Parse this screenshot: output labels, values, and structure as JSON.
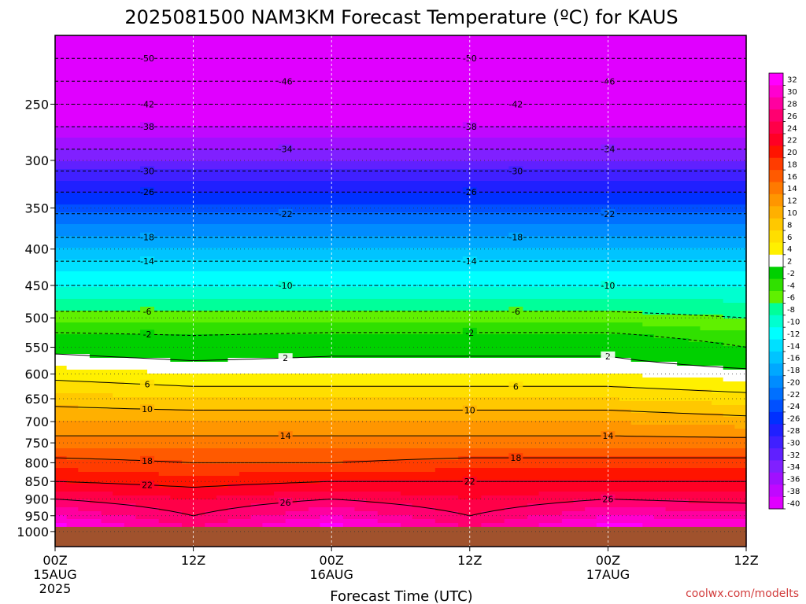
{
  "chart_data": {
    "type": "heatmap",
    "title": "2025081500 NAM3KM Forecast Temperature (ºC) for KAUS",
    "xlabel": "Forecast Time (UTC)",
    "ylabel": "",
    "credit": "coolwx.com/modelts",
    "x_range_hours": [
      0,
      60
    ],
    "y_log_pressure": true,
    "y_range_hpa": [
      200,
      1050
    ],
    "surface_pressure_hpa": 985,
    "x_ticks": [
      {
        "hour": 0,
        "label": "00Z",
        "date": "15AUG",
        "year": "2025"
      },
      {
        "hour": 12,
        "label": "12Z",
        "date": "",
        "year": ""
      },
      {
        "hour": 24,
        "label": "00Z",
        "date": "16AUG",
        "year": ""
      },
      {
        "hour": 36,
        "label": "12Z",
        "date": "",
        "year": ""
      },
      {
        "hour": 48,
        "label": "00Z",
        "date": "17AUG",
        "year": ""
      },
      {
        "hour": 60,
        "label": "12Z",
        "date": "",
        "year": ""
      }
    ],
    "y_ticks": [
      "250",
      "300",
      "350",
      "400",
      "450",
      "500",
      "550",
      "600",
      "650",
      "700",
      "750",
      "800",
      "850",
      "900",
      "950",
      "1000"
    ],
    "colorbar_levels": [
      "32",
      "30",
      "28",
      "26",
      "24",
      "22",
      "20",
      "18",
      "16",
      "14",
      "12",
      "10",
      "8",
      "6",
      "4",
      "2",
      "-2",
      "-4",
      "-6",
      "-8",
      "-10",
      "-12",
      "-14",
      "-16",
      "-18",
      "-20",
      "-22",
      "-24",
      "-26",
      "-28",
      "-30",
      "-32",
      "-34",
      "-36",
      "-38",
      "-40"
    ],
    "colorbar_colors": [
      "#ff00ff",
      "#ff00d0",
      "#ff00a0",
      "#ff0070",
      "#ff0048",
      "#ff0024",
      "#ff1400",
      "#ff3c00",
      "#ff5a00",
      "#ff7a00",
      "#ff9600",
      "#ffb000",
      "#ffc800",
      "#ffde00",
      "#fff000",
      "#ffffff",
      "#00d000",
      "#30e000",
      "#60f000",
      "#00ff9a",
      "#00ffd0",
      "#00ffff",
      "#00e0ff",
      "#00c4ff",
      "#00a8ff",
      "#008cff",
      "#0070ff",
      "#0050ff",
      "#0030ff",
      "#2020ff",
      "#4020ff",
      "#6020ff",
      "#8020ff",
      "#a010ff",
      "#c008ff",
      "#e000ff"
    ],
    "temperature_profiles": [
      {
        "hour": 0,
        "temps_c": {
          "200": -54,
          "250": -42,
          "300": -32,
          "350": -23,
          "400": -16,
          "450": -10,
          "500": -5,
          "550": 1,
          "600": 5,
          "650": 9,
          "700": 12,
          "750": 15,
          "800": 19,
          "850": 22,
          "900": 26,
          "950": 30,
          "985": 33
        }
      },
      {
        "hour": 12,
        "temps_c": {
          "200": -54,
          "250": -42,
          "300": -32,
          "350": -23,
          "400": -16,
          "450": -10,
          "500": -5,
          "550": 0,
          "600": 4,
          "650": 8,
          "700": 12,
          "750": 15,
          "800": 18,
          "850": 21,
          "900": 24,
          "950": 26,
          "985": 28
        }
      },
      {
        "hour": 24,
        "temps_c": {
          "200": -54,
          "250": -42,
          "300": -32,
          "350": -23,
          "400": -16,
          "450": -10,
          "500": -5,
          "550": 1,
          "600": 4,
          "650": 8,
          "700": 12,
          "750": 15,
          "800": 18,
          "850": 22,
          "900": 26,
          "950": 30,
          "985": 33
        }
      },
      {
        "hour": 36,
        "temps_c": {
          "200": -54,
          "250": -42,
          "300": -32,
          "350": -23,
          "400": -16,
          "450": -10,
          "500": -5,
          "550": 1,
          "600": 4,
          "650": 8,
          "700": 12,
          "750": 15,
          "800": 19,
          "850": 22,
          "900": 24,
          "950": 26,
          "985": 28
        }
      },
      {
        "hour": 48,
        "temps_c": {
          "200": -54,
          "250": -42,
          "300": -32,
          "350": -23,
          "400": -16,
          "450": -10,
          "500": -5,
          "550": 1,
          "600": 4,
          "650": 8,
          "700": 12,
          "750": 15,
          "800": 19,
          "850": 22,
          "900": 26,
          "950": 30,
          "985": 33
        }
      },
      {
        "hour": 60,
        "temps_c": {
          "200": -54,
          "250": -42,
          "300": -32,
          "350": -23,
          "400": -16,
          "450": -10,
          "500": -6,
          "550": -2,
          "600": 3,
          "650": 7,
          "700": 11,
          "750": 15,
          "800": 19,
          "850": 22,
          "900": 25,
          "950": 29,
          "985": 31
        }
      }
    ],
    "contour_labels_c": [
      "-50",
      "-46",
      "-42",
      "-38",
      "-34",
      "-30",
      "-26",
      "-22",
      "-18",
      "-14",
      "-10",
      "-6",
      "-2",
      "2",
      "6",
      "10",
      "14",
      "18",
      "22",
      "26"
    ],
    "contour_levels_c": [
      -50,
      -46,
      -42,
      -38,
      -34,
      -30,
      -26,
      -22,
      -18,
      -14,
      -10,
      -6,
      -2,
      2,
      6,
      10,
      14,
      18,
      22,
      26
    ]
  }
}
